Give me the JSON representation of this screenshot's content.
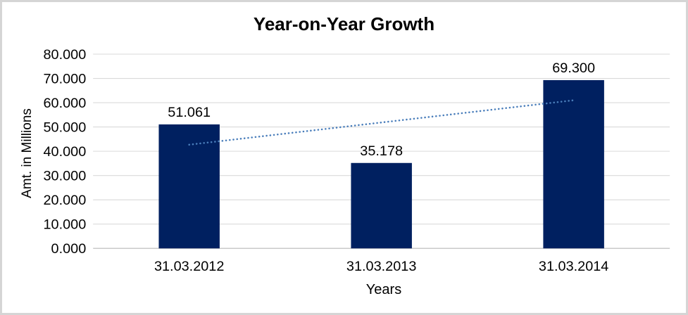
{
  "window": {
    "background": "#ffffff",
    "frame_color": "#d5d5d5"
  },
  "chart_data": {
    "type": "bar",
    "title": "Year-on-Year Growth",
    "xlabel": "Years",
    "ylabel": "Amt. in Millions",
    "categories": [
      "31.03.2012",
      "31.03.2013",
      "31.03.2014"
    ],
    "values": [
      51061,
      35178,
      69300
    ],
    "data_labels": [
      "51.061",
      "35.178",
      "69.300"
    ],
    "ylim": [
      0,
      80000
    ],
    "y_ticks": [
      0,
      10000,
      20000,
      30000,
      40000,
      50000,
      60000,
      70000,
      80000
    ],
    "y_tick_labels": [
      "0.000",
      "10.000",
      "20.000",
      "30.000",
      "40.000",
      "50.000",
      "60.000",
      "70.000",
      "80.000"
    ],
    "grid": true,
    "legend": "none",
    "bar_color": "#002060",
    "gridline_color": "#d9d9d9",
    "axisline_color": "#c9c9c9",
    "trendline": {
      "type": "linear",
      "style": "dotted",
      "color": "#4a7ebb",
      "start_value": 42700,
      "end_value": 61000
    }
  }
}
